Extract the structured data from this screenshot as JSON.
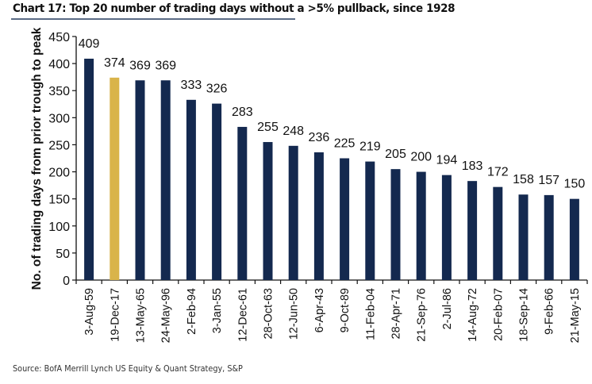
{
  "chart_data": {
    "type": "bar",
    "title": "Chart 17: Top 20 number of trading days without a >5% pullback, since 1928",
    "xlabel": "",
    "ylabel": "No. of trading days from prior trough to peak",
    "ylim": [
      0,
      450
    ],
    "yticks": [
      0,
      50,
      100,
      150,
      200,
      250,
      300,
      350,
      400,
      450
    ],
    "grid": false,
    "legend": "none",
    "categories": [
      "3-Aug-59",
      "19-Dec-17",
      "13-May-65",
      "24-May-96",
      "2-Feb-94",
      "3-Jan-55",
      "12-Dec-61",
      "28-Oct-63",
      "12-Jun-50",
      "6-Apr-43",
      "9-Oct-89",
      "11-Feb-04",
      "28-Apr-71",
      "21-Sep-76",
      "2-Jul-86",
      "14-Aug-72",
      "20-Feb-07",
      "18-Sep-14",
      "9-Feb-66",
      "21-May-15"
    ],
    "values": [
      409,
      374,
      369,
      369,
      333,
      326,
      283,
      255,
      248,
      236,
      225,
      219,
      205,
      200,
      194,
      183,
      172,
      158,
      157,
      150
    ],
    "highlight_index": 1,
    "colors": {
      "default": "#14294f",
      "highlight": "#d9b44a"
    },
    "source": "Source: BofA Merrill Lynch US Equity & Quant Strategy, S&P"
  }
}
